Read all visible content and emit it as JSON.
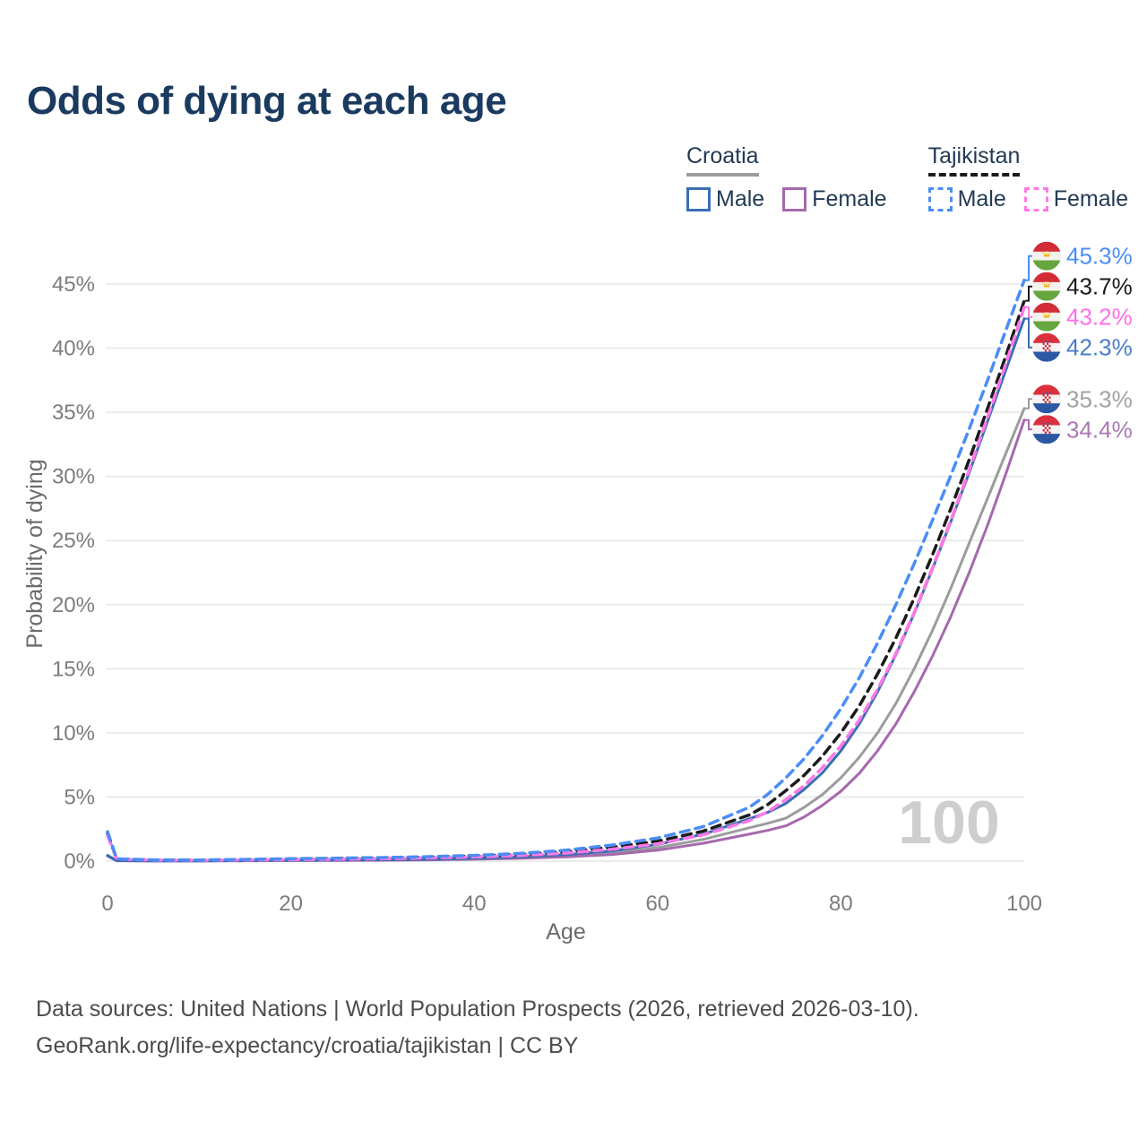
{
  "title": "Odds of dying at each age",
  "legend": {
    "groups": [
      {
        "label": "Croatia",
        "line_style": "solid",
        "line_color": "#9c9c9c",
        "items": [
          {
            "label": "Male",
            "color": "#3a6db4",
            "dashed": false
          },
          {
            "label": "Female",
            "color": "#a569ad",
            "dashed": false
          }
        ]
      },
      {
        "label": "Tajikistan",
        "line_style": "dashed",
        "line_color": "#1b1b1b",
        "items": [
          {
            "label": "Male",
            "color": "#4a8df5",
            "dashed": true
          },
          {
            "label": "Female",
            "color": "#ff78e6",
            "dashed": true
          }
        ]
      }
    ]
  },
  "chart_data": {
    "type": "line",
    "title": "Odds of dying at each age",
    "xlabel": "Age",
    "ylabel": "Probability of dying",
    "x_ticks": [
      0,
      20,
      40,
      60,
      80,
      100
    ],
    "y_ticks": [
      0,
      5,
      10,
      15,
      20,
      25,
      30,
      35,
      40,
      45
    ],
    "y_tick_suffix": "%",
    "xlim": [
      0,
      100
    ],
    "ylim": [
      0,
      47
    ],
    "grid": true,
    "legend_position": "top-right",
    "watermark": "100",
    "ages": [
      0,
      1,
      5,
      10,
      15,
      20,
      25,
      30,
      35,
      40,
      45,
      50,
      55,
      60,
      65,
      70,
      72,
      74,
      76,
      78,
      80,
      82,
      84,
      86,
      88,
      90,
      92,
      94,
      96,
      98,
      100
    ],
    "series": [
      {
        "id": "croatia-both",
        "name": "Croatia Both sexes",
        "country": "croatia",
        "color": "#9c9c9c",
        "label_color": "#a2a2a2",
        "dash": false,
        "end_label": "35.3%",
        "values": [
          0.42,
          0.04,
          0.02,
          0.02,
          0.03,
          0.06,
          0.08,
          0.1,
          0.13,
          0.19,
          0.28,
          0.42,
          0.65,
          1.05,
          1.7,
          2.6,
          2.95,
          3.35,
          4.2,
          5.2,
          6.5,
          8.1,
          10.0,
          12.3,
          15.0,
          18.0,
          21.3,
          24.8,
          28.3,
          31.8,
          35.3
        ]
      },
      {
        "id": "croatia-female",
        "name": "Croatia Female",
        "country": "croatia",
        "color": "#a569ad",
        "label_color": "#a979b5",
        "dash": false,
        "end_label": "34.4%",
        "values": [
          0.4,
          0.03,
          0.02,
          0.02,
          0.03,
          0.04,
          0.05,
          0.07,
          0.1,
          0.15,
          0.22,
          0.33,
          0.52,
          0.85,
          1.4,
          2.1,
          2.4,
          2.75,
          3.45,
          4.35,
          5.45,
          6.85,
          8.6,
          10.7,
          13.2,
          16.0,
          19.1,
          22.5,
          26.2,
          30.2,
          34.4
        ]
      },
      {
        "id": "croatia-male",
        "name": "Croatia Male",
        "country": "croatia",
        "color": "#3a6db4",
        "label_color": "#4a7dc9",
        "dash": false,
        "end_label": "42.3%",
        "values": [
          0.45,
          0.04,
          0.02,
          0.02,
          0.04,
          0.07,
          0.09,
          0.11,
          0.15,
          0.22,
          0.33,
          0.5,
          0.8,
          1.3,
          2.1,
          3.3,
          3.8,
          4.5,
          5.6,
          6.9,
          8.6,
          10.7,
          13.2,
          16.1,
          19.3,
          22.8,
          26.5,
          30.3,
          34.3,
          38.3,
          42.3
        ]
      },
      {
        "id": "tajikistan-both",
        "name": "Tajikistan Both sexes",
        "country": "tajikistan",
        "color": "#1b1b1b",
        "label_color": "#1b1b1b",
        "dash": true,
        "end_label": "43.7%",
        "values": [
          2.15,
          0.17,
          0.09,
          0.08,
          0.11,
          0.16,
          0.2,
          0.24,
          0.3,
          0.39,
          0.52,
          0.73,
          1.08,
          1.55,
          2.35,
          3.6,
          4.4,
          5.5,
          6.7,
          8.2,
          10.0,
          12.1,
          14.6,
          17.4,
          20.5,
          23.9,
          27.5,
          31.3,
          35.3,
          39.4,
          43.7
        ]
      },
      {
        "id": "tajikistan-female",
        "name": "Tajikistan Female",
        "country": "tajikistan",
        "color": "#ff78e6",
        "label_color": "#ff6fe8",
        "dash": true,
        "end_label": "43.2%",
        "values": [
          2.0,
          0.16,
          0.08,
          0.07,
          0.09,
          0.12,
          0.15,
          0.19,
          0.25,
          0.33,
          0.45,
          0.63,
          0.93,
          1.35,
          2.05,
          3.15,
          3.85,
          4.8,
          5.9,
          7.3,
          9.0,
          11.0,
          13.4,
          16.2,
          19.4,
          22.9,
          26.6,
          30.5,
          34.6,
          38.8,
          43.2
        ]
      },
      {
        "id": "tajikistan-male",
        "name": "Tajikistan Male",
        "country": "tajikistan",
        "color": "#4a8df5",
        "label_color": "#4a8df5",
        "dash": true,
        "end_label": "45.3%",
        "values": [
          2.3,
          0.18,
          0.1,
          0.09,
          0.13,
          0.19,
          0.23,
          0.28,
          0.35,
          0.45,
          0.6,
          0.85,
          1.25,
          1.8,
          2.7,
          4.2,
          5.2,
          6.5,
          8.0,
          9.8,
          11.9,
          14.3,
          17.0,
          20.0,
          23.2,
          26.6,
          30.1,
          33.7,
          37.5,
          41.4,
          45.3
        ]
      }
    ]
  },
  "footer": {
    "line1": "Data sources: United Nations | World Population Prospects (2026, retrieved 2026-03-10).",
    "line2": "GeoRank.org/life-expectancy/croatia/tajikistan | CC BY"
  }
}
